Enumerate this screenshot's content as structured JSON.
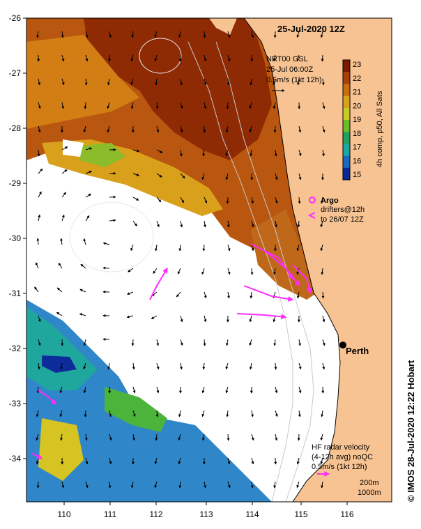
{
  "title": "25-Jul-2020 12Z",
  "nrt": {
    "line1": "NRT00 GSL",
    "line2": "25-Jul 06:00Z",
    "line3": "0.5m/s (1kt 12h)"
  },
  "colorbar": {
    "label": "4h comp, p50, All Sats",
    "ticks": [
      "23",
      "22",
      "21",
      "20",
      "19",
      "18",
      "17",
      "16",
      "15"
    ],
    "colors": [
      "#7a1a00",
      "#a8400a",
      "#c96f10",
      "#d9a21a",
      "#c8cc22",
      "#6cbb2a",
      "#22a060",
      "#1aa7a6",
      "#1a68c0",
      "#0a2a9a"
    ]
  },
  "legend": {
    "argo": "Argo",
    "drifters_1": "drifters@12h",
    "drifters_2": "to 26/07 12Z"
  },
  "city": "Perth",
  "hf_radar": {
    "line1": "HF radar velocity",
    "line2": "(4-12h avg) noQC",
    "line3": "0.5m/s (1kt 12h)"
  },
  "depths": {
    "d1": "200m",
    "d2": "1000m"
  },
  "credit": "© IMOS 28-Jul-2020 12:22 Hobart",
  "axes": {
    "lon_ticks": [
      "110",
      "111",
      "112",
      "113",
      "114",
      "115",
      "116"
    ],
    "lat_ticks": [
      "-26",
      "-27",
      "-28",
      "-29",
      "-30",
      "-31",
      "-32",
      "-33",
      "-34"
    ]
  },
  "colors": {
    "land": "#f8c392",
    "ocean_warm": "#b5500f",
    "ocean_cold": "#2c7fc8",
    "cloud": "#ffffff",
    "drifter": "#ff2bff",
    "arrow": "#000000"
  }
}
